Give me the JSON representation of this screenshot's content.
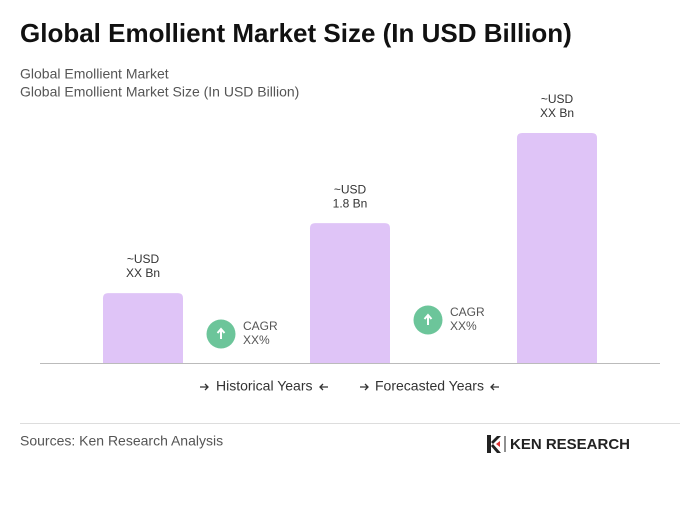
{
  "chart_data": {
    "type": "bar",
    "title": "Global Emollient Market Size (In USD Billion)",
    "subtitle": [
      "Global Emollient Market",
      "Global Emollient Market Size (In USD Billion)"
    ],
    "values": [
      0.9,
      1.8,
      2.96
    ],
    "value_labels": [
      [
        "~USD",
        "XX Bn"
      ],
      [
        "~USD",
        "1.8 Bn"
      ],
      [
        "~USD",
        "XX Bn"
      ]
    ],
    "color": "#dfc4f7",
    "annotations": [
      {
        "label": "CAGR",
        "value": "XX%"
      },
      {
        "label": "CAGR",
        "value": "XX%"
      }
    ],
    "legend": [
      "Historical Years",
      "Forecasted Years"
    ],
    "source": "Sources: Ken Research Analysis",
    "logo": "KEN RESEARCH"
  }
}
